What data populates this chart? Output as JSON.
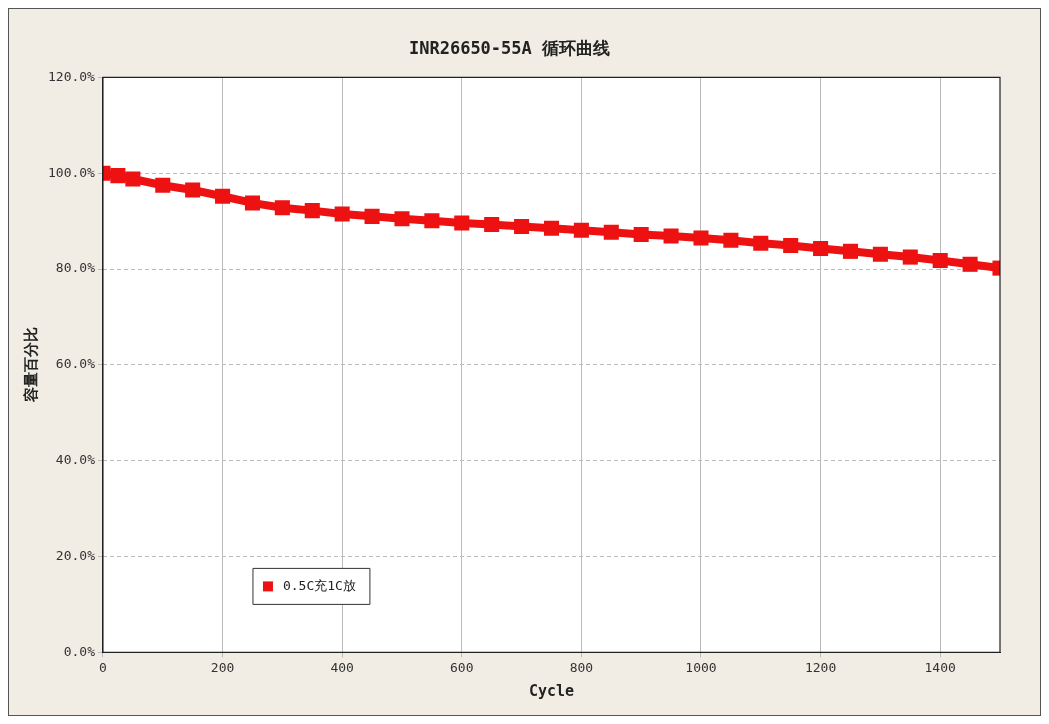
{
  "chart_data": {
    "type": "line",
    "title": "INR26650-55A 循环曲线",
    "xlabel": "Cycle",
    "ylabel": "容量百分比",
    "x": [
      0,
      25,
      50,
      100,
      150,
      200,
      250,
      300,
      350,
      400,
      450,
      500,
      550,
      600,
      650,
      700,
      750,
      800,
      850,
      900,
      950,
      1000,
      1050,
      1100,
      1150,
      1200,
      1250,
      1300,
      1350,
      1400,
      1450,
      1500
    ],
    "series": [
      {
        "name": "0.5C充1C放",
        "color": "#ee1111",
        "values": [
          100,
          99.5,
          98.8,
          97.5,
          96.5,
          95.2,
          93.8,
          92.8,
          92.2,
          91.5,
          91.0,
          90.5,
          90.1,
          89.6,
          89.3,
          88.9,
          88.5,
          88.1,
          87.7,
          87.2,
          86.9,
          86.5,
          86.0,
          85.4,
          84.9,
          84.3,
          83.7,
          83.1,
          82.5,
          81.8,
          81.0,
          80.2
        ]
      }
    ],
    "xlim": [
      0,
      1500
    ],
    "xticks": [
      0,
      200,
      400,
      600,
      800,
      1000,
      1200,
      1400
    ],
    "ylim": [
      0,
      120
    ],
    "yticks": [
      {
        "value": 0,
        "label": "0.0%"
      },
      {
        "value": 20,
        "label": "20.0%"
      },
      {
        "value": 40,
        "label": "40.0%"
      },
      {
        "value": 60,
        "label": "60.0%"
      },
      {
        "value": 80,
        "label": "80.0%"
      },
      {
        "value": 100,
        "label": "100.0%"
      },
      {
        "value": 120,
        "label": "120.0%"
      }
    ],
    "grid": true,
    "legend": "bottom left",
    "marker": "square",
    "line_style": "solid"
  }
}
